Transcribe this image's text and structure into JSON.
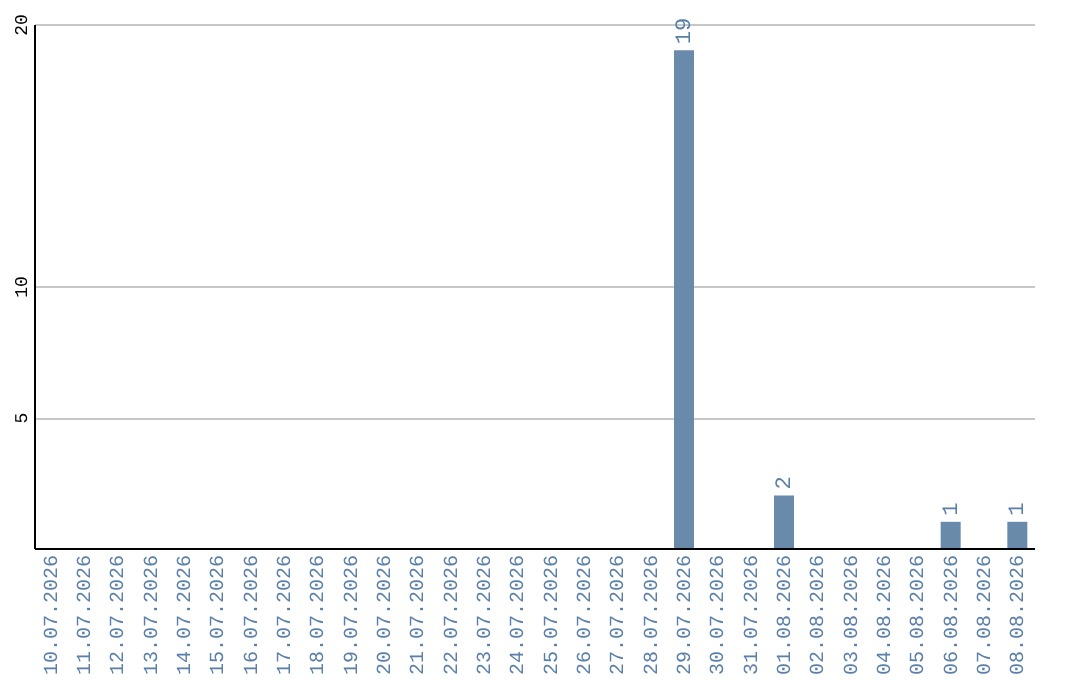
{
  "chart_data": {
    "type": "bar",
    "categories": [
      "10.07.2026",
      "11.07.2026",
      "12.07.2026",
      "13.07.2026",
      "14.07.2026",
      "15.07.2026",
      "16.07.2026",
      "17.07.2026",
      "18.07.2026",
      "19.07.2026",
      "20.07.2026",
      "21.07.2026",
      "22.07.2026",
      "23.07.2026",
      "24.07.2026",
      "25.07.2026",
      "26.07.2026",
      "27.07.2026",
      "28.07.2026",
      "29.07.2026",
      "30.07.2026",
      "31.07.2026",
      "01.08.2026",
      "02.08.2026",
      "03.08.2026",
      "04.08.2026",
      "05.08.2026",
      "06.08.2026",
      "07.08.2026",
      "08.08.2026"
    ],
    "values": [
      0,
      0,
      0,
      0,
      0,
      0,
      0,
      0,
      0,
      0,
      0,
      0,
      0,
      0,
      0,
      0,
      0,
      0,
      0,
      19,
      0,
      0,
      2,
      0,
      0,
      0,
      0,
      1,
      0,
      1
    ],
    "value_labels": [
      null,
      null,
      null,
      null,
      null,
      null,
      null,
      null,
      null,
      null,
      null,
      null,
      null,
      null,
      null,
      null,
      null,
      null,
      null,
      "19",
      null,
      null,
      "2",
      null,
      null,
      null,
      null,
      "1",
      null,
      "1"
    ],
    "color": "#6a8aab",
    "ylim": [
      0,
      20
    ],
    "yticks": [
      5,
      10,
      20
    ],
    "grid": "y"
  }
}
